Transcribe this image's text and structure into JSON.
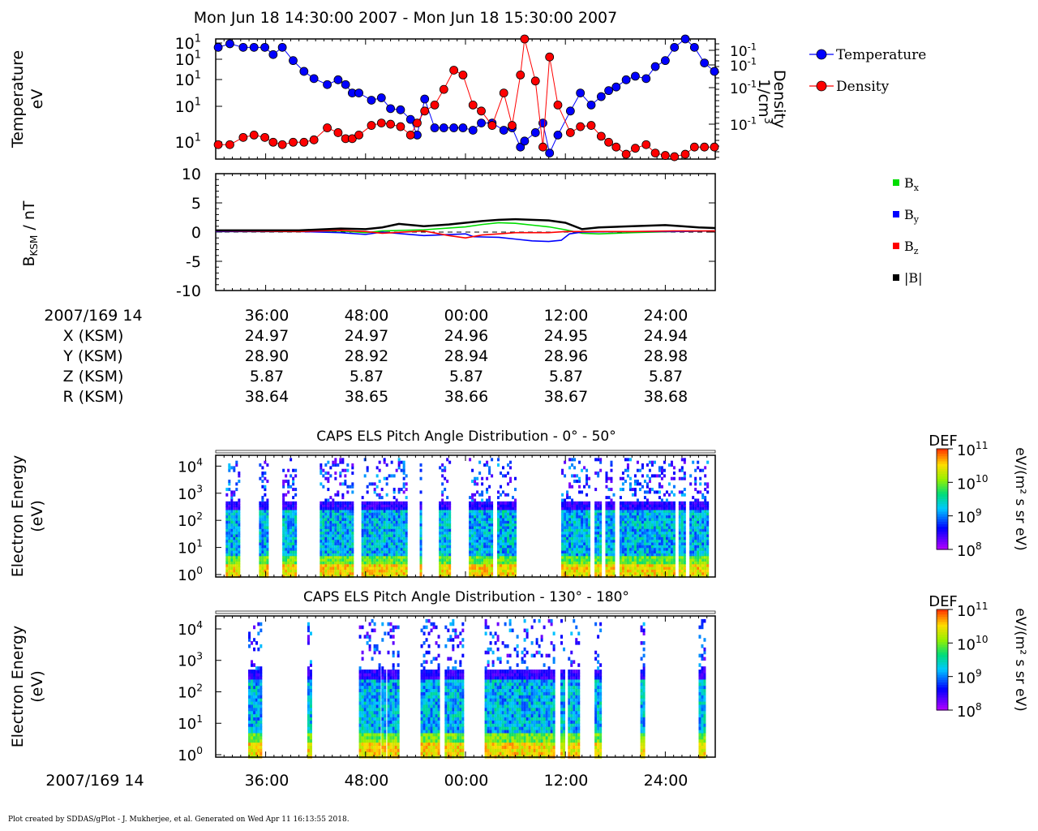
{
  "title": "Mon Jun 18 14:30:00 2007 - Mon Jun 18 15:30:00 2007",
  "footer": "Plot created by SDDAS/gPlot - J. Mukherjee, et al.  Generated on Wed Apr 11 16:13:55 2018.",
  "colors": {
    "temperature": "#0000ff",
    "density": "#ff0000",
    "bx": "#00dd00",
    "by": "#0000ff",
    "bz": "#ff0000",
    "bmag": "#000000"
  },
  "chart_data": [
    {
      "type": "line",
      "ylabel_lines": [
        "Temperature",
        "eV"
      ],
      "y2label_lines": [
        "Density",
        "1/cm",
        "3"
      ],
      "left_ticks": [
        "10",
        "10",
        "10",
        "10",
        "10"
      ],
      "left_tick_exp": [
        "1",
        "1",
        "1",
        "1",
        "1"
      ],
      "right_ticks": [
        "10",
        "10",
        "10",
        "10"
      ],
      "right_tick_exp": [
        "-1",
        "-1",
        "-1",
        "-1"
      ],
      "x_range_min": [
        0,
        60
      ],
      "legend": [
        {
          "name": "Temperature",
          "color": "#0000ff"
        },
        {
          "name": "Density",
          "color": "#ff0000"
        }
      ],
      "series": [
        {
          "name": "Temperature",
          "x": [
            0.3,
            1.7,
            3.3,
            4.6,
            5.9,
            6.9,
            8,
            9.3,
            10.6,
            11.8,
            13.4,
            14.7,
            15.6,
            16.4,
            17.2,
            18.7,
            19.9,
            21,
            22.2,
            23.4,
            24.2,
            25.1,
            26.3,
            27.4,
            28.6,
            29.7,
            30.9,
            31.9,
            33.2,
            34.6,
            35.6,
            36.6,
            37.1,
            38.4,
            39.3,
            40.1,
            41.1,
            42.6,
            43.8,
            45.1,
            46.3,
            47.2,
            48.1,
            49.3,
            50.4,
            51.7,
            52.8,
            54,
            55.1,
            56.4,
            57.5,
            58.7,
            59.9
          ],
          "y": [
            0.93,
            0.96,
            0.93,
            0.93,
            0.93,
            0.87,
            0.93,
            0.82,
            0.73,
            0.67,
            0.62,
            0.66,
            0.62,
            0.55,
            0.55,
            0.49,
            0.51,
            0.42,
            0.41,
            0.33,
            0.2,
            0.5,
            0.26,
            0.26,
            0.26,
            0.26,
            0.24,
            0.3,
            0.3,
            0.24,
            0.26,
            0.1,
            0.15,
            0.22,
            0.3,
            0.05,
            0.2,
            0.4,
            0.55,
            0.45,
            0.52,
            0.57,
            0.6,
            0.66,
            0.69,
            0.67,
            0.77,
            0.82,
            0.93,
            1,
            0.93,
            0.8,
            0.73
          ]
        },
        {
          "name": "Density",
          "x": [
            0.3,
            1.7,
            3.3,
            4.6,
            5.9,
            6.9,
            8,
            9.3,
            10.6,
            11.8,
            13.4,
            14.7,
            15.6,
            16.4,
            17.2,
            18.7,
            19.9,
            21,
            22.2,
            23.4,
            24.2,
            25.1,
            26.3,
            27.4,
            28.6,
            29.7,
            30.9,
            31.9,
            33.2,
            34.6,
            35.6,
            36.6,
            37.1,
            38.4,
            39.3,
            40.1,
            41.1,
            42.6,
            43.8,
            45.1,
            46.3,
            47.2,
            48.1,
            49.3,
            50.4,
            51.7,
            52.8,
            54,
            55.1,
            56.4,
            57.5,
            58.7,
            59.9
          ],
          "y": [
            0.12,
            0.12,
            0.18,
            0.2,
            0.18,
            0.14,
            0.12,
            0.14,
            0.14,
            0.16,
            0.26,
            0.22,
            0.17,
            0.17,
            0.2,
            0.28,
            0.3,
            0.29,
            0.27,
            0.2,
            0.3,
            0.4,
            0.45,
            0.58,
            0.74,
            0.7,
            0.45,
            0.4,
            0.28,
            0.55,
            0.28,
            0.7,
            1,
            0.65,
            0.1,
            0.85,
            0.45,
            0.22,
            0.27,
            0.28,
            0.19,
            0.14,
            0.1,
            0.04,
            0.09,
            0.12,
            0.05,
            0.03,
            0.02,
            0.04,
            0.1,
            0.1,
            0.1
          ]
        }
      ]
    },
    {
      "type": "line",
      "ylabel": "B",
      "ylabel_sub": "KSM",
      "ylabel_rest": " / nT",
      "ylim": [
        -10,
        10
      ],
      "y_ticks": [
        "10",
        "5",
        "0",
        "-5",
        "-10"
      ],
      "legend": [
        {
          "name": "B",
          "sub": "x",
          "color": "#00dd00"
        },
        {
          "name": "B",
          "sub": "y",
          "color": "#0000ff"
        },
        {
          "name": "B",
          "sub": "z",
          "color": "#ff0000"
        },
        {
          "name": "|B|",
          "sub": "",
          "color": "#000000"
        }
      ],
      "series": [
        {
          "name": "Bx",
          "x": [
            0,
            10,
            15,
            18,
            20,
            25,
            30,
            32,
            34,
            36,
            38,
            40,
            42,
            44,
            46,
            50,
            55,
            60
          ],
          "y": [
            0.1,
            0.1,
            0.2,
            -0.1,
            0.2,
            0.4,
            0.9,
            1.3,
            1.6,
            1.5,
            1.2,
            0.9,
            0.4,
            -0.2,
            -0.3,
            -0.1,
            0.1,
            0.2
          ]
        },
        {
          "name": "By",
          "x": [
            0,
            10,
            15,
            18,
            20,
            25,
            30,
            31,
            34,
            36,
            38,
            40,
            41.5,
            42.5,
            44,
            50,
            55,
            60
          ],
          "y": [
            0.1,
            0.1,
            -0.1,
            -0.4,
            0,
            -0.6,
            -0.3,
            -0.8,
            -0.9,
            -1.2,
            -1.5,
            -1.6,
            -1.4,
            -0.3,
            0,
            0.1,
            0.1,
            0.2
          ]
        },
        {
          "name": "Bz",
          "x": [
            0,
            10,
            15,
            18,
            20,
            25,
            28,
            30,
            32,
            34,
            36,
            40,
            42,
            44,
            50,
            55,
            60
          ],
          "y": [
            0.2,
            0.1,
            0.3,
            0.1,
            -0.2,
            0.2,
            -0.6,
            -1.0,
            -0.5,
            -0.3,
            -0.1,
            -0.1,
            0.1,
            0.1,
            0.1,
            0.2,
            0.2
          ]
        },
        {
          "name": "|B|",
          "x": [
            0,
            10,
            15,
            18,
            20,
            22,
            25,
            28,
            30,
            32,
            34,
            36,
            38,
            40,
            42,
            44,
            46,
            50,
            54,
            56,
            58,
            60
          ],
          "y": [
            0.3,
            0.3,
            0.6,
            0.5,
            0.8,
            1.4,
            1.0,
            1.3,
            1.6,
            1.9,
            2.1,
            2.2,
            2.1,
            2.0,
            1.6,
            0.5,
            0.8,
            1.0,
            1.2,
            1.0,
            0.8,
            0.7
          ]
        }
      ]
    },
    {
      "type": "heatmap",
      "title": "CAPS ELS Pitch Angle Distribution - 0° - 50°",
      "ylabel_lines": [
        "Electron Energy",
        "(eV)"
      ],
      "y_ticks": [
        "10",
        "10",
        "10",
        "10",
        "10"
      ],
      "y_tick_exp": [
        "4",
        "3",
        "2",
        "1",
        "0"
      ],
      "colorbar": {
        "label": "DEF",
        "units": "eV/(m² s sr eV)",
        "ticks": [
          "10",
          "10",
          "10",
          "10"
        ],
        "tick_exp": [
          "11",
          "10",
          "9",
          "8"
        ]
      },
      "active_intervals_min": [
        [
          1.2,
          2.8
        ],
        [
          5.2,
          6.3
        ],
        [
          8.0,
          9.5
        ],
        [
          12.5,
          16.3
        ],
        [
          17.5,
          23.0
        ],
        [
          24.5,
          24.7
        ],
        [
          26.8,
          28.2
        ],
        [
          30.4,
          33.2
        ],
        [
          33.8,
          36.0
        ],
        [
          41.5,
          45.0
        ],
        [
          45.5,
          46.3
        ],
        [
          46.8,
          47.8
        ],
        [
          48.5,
          55.0
        ],
        [
          55.6,
          56.3
        ],
        [
          56.9,
          59.0
        ]
      ]
    },
    {
      "type": "heatmap",
      "title": "CAPS ELS Pitch Angle Distribution - 130° - 180°",
      "ylabel_lines": [
        "Electron Energy",
        "(eV)"
      ],
      "y_ticks": [
        "10",
        "10",
        "10",
        "10",
        "10"
      ],
      "y_tick_exp": [
        "4",
        "3",
        "2",
        "1",
        "0"
      ],
      "colorbar": {
        "label": "DEF",
        "units": "eV/(m² s sr eV)",
        "ticks": [
          "10",
          "10",
          "10",
          "10"
        ],
        "tick_exp": [
          "11",
          "10",
          "9",
          "8"
        ]
      },
      "active_intervals_min": [
        [
          3.9,
          4.8
        ],
        [
          5.0,
          5.4
        ],
        [
          11.0,
          11.5
        ],
        [
          17.2,
          19.6
        ],
        [
          19.9,
          20.2
        ],
        [
          20.6,
          21.0
        ],
        [
          21.2,
          22.0
        ],
        [
          24.6,
          26.8
        ],
        [
          27.5,
          29.6
        ],
        [
          32.3,
          40.5
        ],
        [
          41.4,
          41.8
        ],
        [
          42.3,
          43.5
        ],
        [
          45.5,
          46.3
        ],
        [
          51.0,
          51.5
        ],
        [
          58.0,
          58.6
        ]
      ]
    }
  ],
  "x_axis": {
    "label_row": "2007/169 14",
    "tick_labels": [
      "36:00",
      "48:00",
      "00:00",
      "12:00",
      "24:00"
    ],
    "tick_minutes": [
      6,
      18,
      30,
      42,
      54
    ]
  },
  "ephemeris": [
    {
      "label": "X (KSM)",
      "values": [
        "24.97",
        "24.97",
        "24.96",
        "24.95",
        "24.94"
      ]
    },
    {
      "label": "Y (KSM)",
      "values": [
        "28.90",
        "28.92",
        "28.94",
        "28.96",
        "28.98"
      ]
    },
    {
      "label": "Z (KSM)",
      "values": [
        "5.87",
        "5.87",
        "5.87",
        "5.87",
        "5.87"
      ]
    },
    {
      "label": "R (KSM)",
      "values": [
        "38.64",
        "38.65",
        "38.66",
        "38.67",
        "38.68"
      ]
    }
  ]
}
